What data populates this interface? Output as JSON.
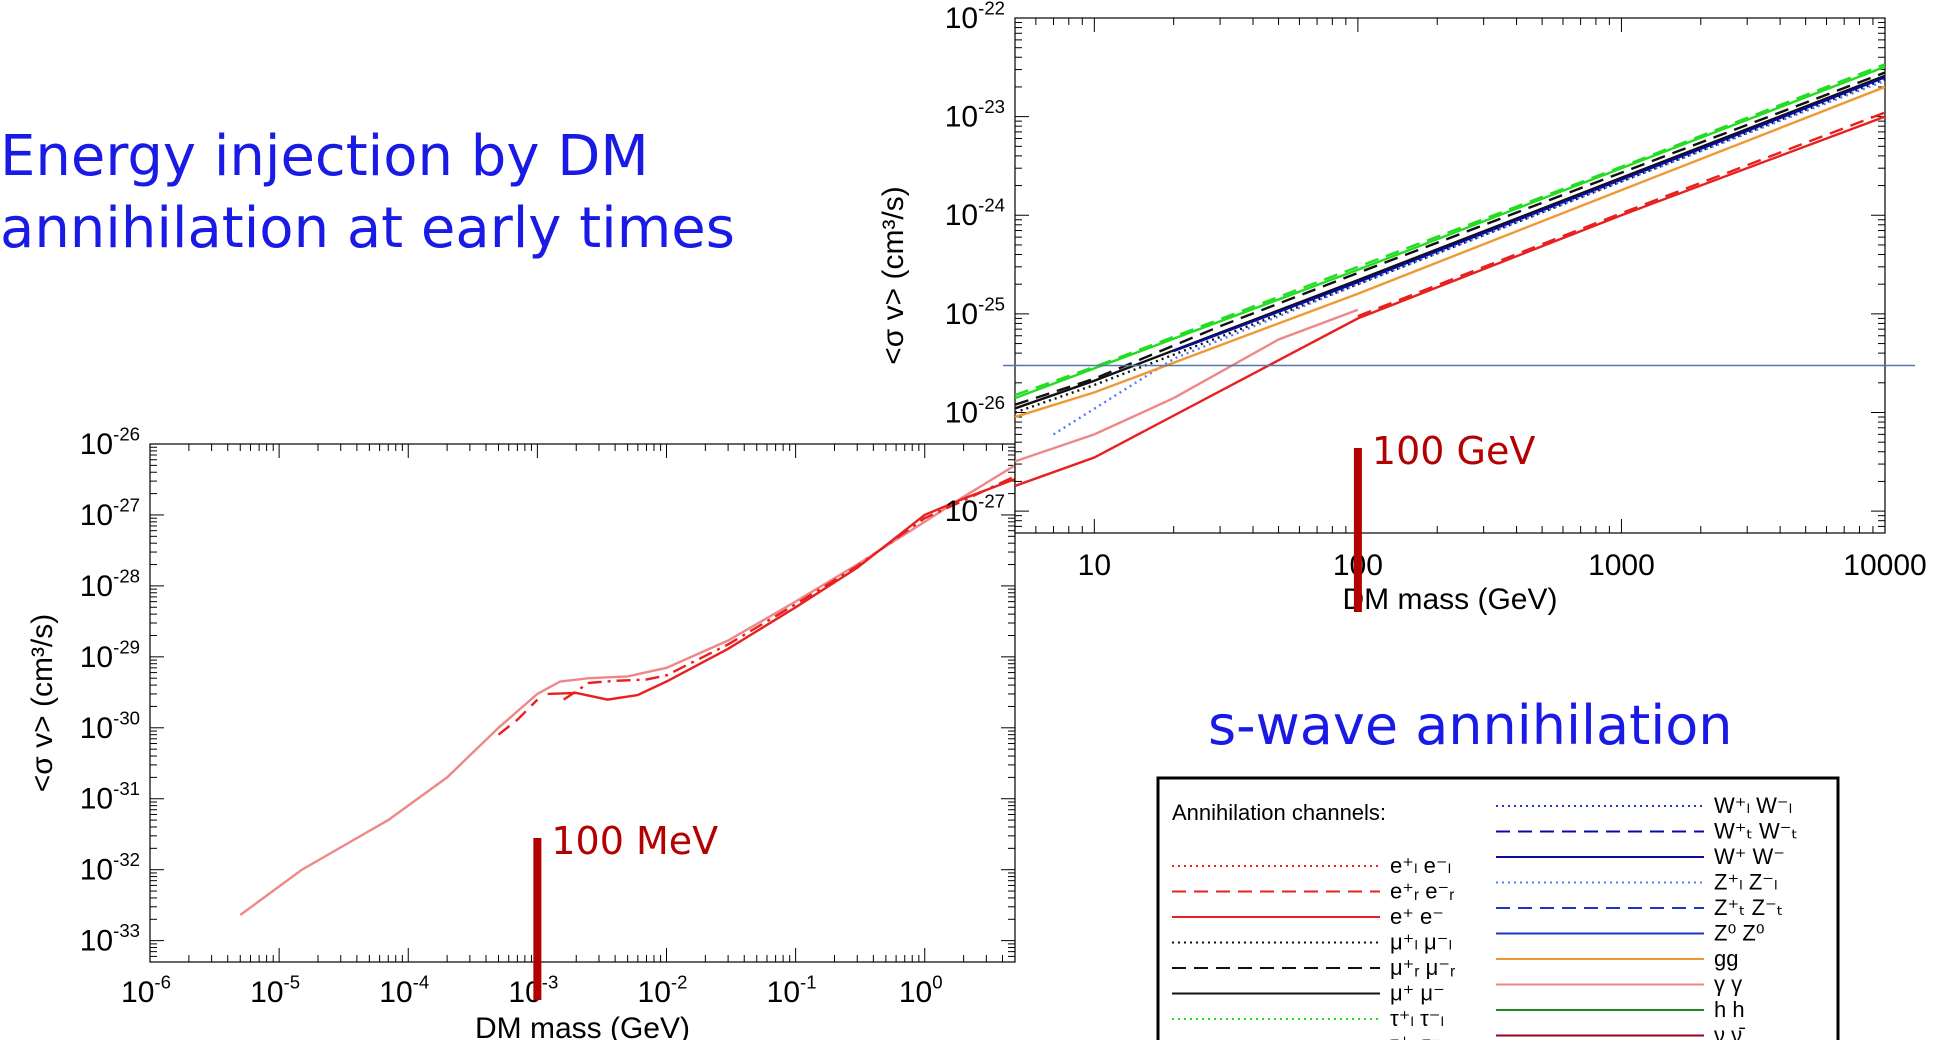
{
  "heading": {
    "line1": "Energy injection by DM",
    "line2": "annihilation at early times",
    "subtitle": "s-wave annihilation"
  },
  "chart_data": [
    {
      "type": "line",
      "id": "main-plot",
      "xlabel": "DM mass (GeV)",
      "ylabel": "<σ v> (cm³/s)",
      "xscale": "log",
      "yscale": "log",
      "xlim": [
        1e-06,
        5
      ],
      "ylim": [
        5e-34,
        1e-26
      ],
      "x_ticks": [
        "-6",
        "-5",
        "-4",
        "-3",
        "-2",
        "-1",
        "0"
      ],
      "y_ticks": [
        "-26",
        "-27",
        "-28",
        "-29",
        "-30",
        "-31",
        "-32",
        "-33"
      ],
      "series": [
        {
          "color": "#ee8888",
          "dash": "solid",
          "x": [
            5e-06,
            1.5e-05,
            7e-05,
            0.0002,
            0.0005,
            0.001,
            0.0015,
            0.0025,
            0.005,
            0.01,
            0.03,
            0.1,
            0.3,
            1,
            2,
            5
          ],
          "y": [
            2.3e-33,
            1e-32,
            5e-32,
            2e-31,
            1e-30,
            3e-30,
            4.5e-30,
            5e-30,
            5.3e-30,
            7e-30,
            1.7e-29,
            6e-29,
            2e-28,
            8e-28,
            1.8e-27,
            5e-27
          ]
        },
        {
          "color": "#e82020",
          "dash": "solid",
          "x": [
            0.0012,
            0.002,
            0.0035,
            0.006,
            0.01,
            0.03,
            0.1,
            0.3,
            1,
            2,
            5
          ],
          "y": [
            3e-30,
            3.1e-30,
            2.5e-30,
            2.9e-30,
            4.5e-30,
            1.3e-29,
            5e-29,
            1.8e-28,
            1e-27,
            1.7e-27,
            3.2e-27
          ]
        },
        {
          "color": "#e82020",
          "dash": "dashdot",
          "x": [
            0.0016,
            0.0025,
            0.004,
            0.007,
            0.01,
            0.03,
            0.1,
            0.3,
            1,
            2,
            5
          ],
          "y": [
            2.5e-30,
            4.3e-30,
            4.6e-30,
            4.8e-30,
            5.5e-30,
            1.5e-29,
            5.5e-29,
            1.9e-28,
            9e-28,
            1.6e-27,
            3.5e-27
          ]
        },
        {
          "color": "#e82020",
          "dash": "dashed",
          "x": [
            0.0005,
            0.0007,
            0.001
          ],
          "y": [
            8e-31,
            1.3e-30,
            2.5e-30
          ]
        }
      ],
      "annotation": {
        "label": "100 MeV",
        "x": 0.001
      }
    },
    {
      "type": "line",
      "id": "inset-plot",
      "xlabel": "DM mass (GeV)",
      "ylabel": "<σ v> (cm³/s)",
      "xscale": "log",
      "yscale": "log",
      "xlim": [
        5,
        10000
      ],
      "ylim": [
        6e-28,
        1e-22
      ],
      "x_ticks": [
        "10",
        "100",
        "1000",
        "10000"
      ],
      "y_ticks": [
        "-22",
        "-23",
        "-24",
        "-25",
        "-26",
        "-27"
      ],
      "reference_line": 3e-26,
      "series": [
        {
          "color": "#22dd22",
          "dash": "solid",
          "x": [
            5,
            10,
            100,
            1000,
            10000
          ],
          "y": [
            1.4e-26,
            2.8e-26,
            2.8e-25,
            3e-24,
            3.2e-23
          ]
        },
        {
          "color": "#22dd22",
          "dash": "dashed",
          "x": [
            5,
            10,
            100,
            1000,
            10000
          ],
          "y": [
            1.5e-26,
            2.9e-26,
            3e-25,
            3.1e-24,
            3.4e-23
          ]
        },
        {
          "color": "#111111",
          "dash": "dashed",
          "x": [
            5,
            10,
            30,
            100,
            1000,
            10000
          ],
          "y": [
            1.2e-26,
            2.2e-26,
            7.5e-26,
            2.6e-25,
            2.7e-24,
            2.8e-23
          ]
        },
        {
          "color": "#111111",
          "dash": "solid",
          "x": [
            5,
            10,
            100,
            1000,
            10000
          ],
          "y": [
            1.1e-26,
            2.1e-26,
            2.2e-25,
            2.4e-24,
            2.6e-23
          ]
        },
        {
          "color": "#111111",
          "dash": "dotted",
          "x": [
            5,
            10,
            100,
            1000,
            10000
          ],
          "y": [
            1e-26,
            1.9e-26,
            2e-25,
            2.2e-24,
            2.4e-23
          ]
        },
        {
          "color": "#0a0aa0",
          "dash": "solid",
          "x": [
            20,
            100,
            1000,
            10000
          ],
          "y": [
            4.2e-26,
            2.1e-25,
            2.3e-24,
            2.5e-23
          ]
        },
        {
          "color": "#5577ff",
          "dash": "dotted",
          "x": [
            7,
            20,
            100,
            1000,
            10000
          ],
          "y": [
            6e-27,
            3.5e-26,
            2e-25,
            2.2e-24,
            2.3e-23
          ]
        },
        {
          "color": "#ee9933",
          "dash": "solid",
          "x": [
            5,
            10,
            100,
            1000,
            10000
          ],
          "y": [
            9e-27,
            1.6e-26,
            1.6e-25,
            1.8e-24,
            2e-23
          ]
        },
        {
          "color": "#ee8888",
          "dash": "solid",
          "x": [
            5,
            10,
            20,
            50,
            100
          ],
          "y": [
            3.2e-27,
            6e-27,
            1.4e-26,
            5.5e-26,
            1.1e-25
          ]
        },
        {
          "color": "#e82020",
          "dash": "solid",
          "x": [
            5,
            10,
            100,
            1000,
            10000
          ],
          "y": [
            1.8e-27,
            3.5e-27,
            9e-26,
            1e-24,
            1e-23
          ]
        },
        {
          "color": "#e82020",
          "dash": "dashed",
          "x": [
            100,
            1000,
            10000
          ],
          "y": [
            9.5e-26,
            1.05e-24,
            1.1e-23
          ]
        }
      ],
      "annotation": {
        "label": "100 GeV",
        "x": 100
      }
    }
  ],
  "legend": {
    "header": "Annihilation channels:",
    "left": [
      {
        "color": "#e82020",
        "dash": "dotted",
        "label": "e⁺ₗ e⁻ₗ"
      },
      {
        "color": "#e82020",
        "dash": "dashed",
        "label": "e⁺ᵣ e⁻ᵣ"
      },
      {
        "color": "#e82020",
        "dash": "solid",
        "label": "e⁺ e⁻"
      },
      {
        "color": "#111111",
        "dash": "dotted",
        "label": "μ⁺ₗ μ⁻ₗ"
      },
      {
        "color": "#111111",
        "dash": "dashed",
        "label": "μ⁺ᵣ μ⁻ᵣ"
      },
      {
        "color": "#111111",
        "dash": "solid",
        "label": "μ⁺ μ⁻"
      },
      {
        "color": "#22dd22",
        "dash": "dotted",
        "label": "τ⁺ₗ τ⁻ₗ"
      },
      {
        "color": "#22dd22",
        "dash": "dashed",
        "label": "τ⁺ᵣ τ⁻ᵣ"
      }
    ],
    "right": [
      {
        "color": "#2233cc",
        "dash": "dotted",
        "label": "W⁺ₗ W⁻ₗ"
      },
      {
        "color": "#0a0aa0",
        "dash": "dashed",
        "label": "W⁺ₜ W⁻ₜ"
      },
      {
        "color": "#0a0aa0",
        "dash": "solid",
        "label": "W⁺ W⁻"
      },
      {
        "color": "#5577ff",
        "dash": "dotted",
        "label": "Z⁺ₗ Z⁻ₗ"
      },
      {
        "color": "#2233cc",
        "dash": "dashed",
        "label": "Z⁺ₜ Z⁻ₜ"
      },
      {
        "color": "#2233cc",
        "dash": "solid",
        "label": "Z⁰ Z⁰"
      },
      {
        "color": "#ee9933",
        "dash": "solid",
        "label": "gg"
      },
      {
        "color": "#ee8888",
        "dash": "solid",
        "label": "γ γ"
      },
      {
        "color": "#228822",
        "dash": "solid",
        "label": "h h"
      },
      {
        "color": "#990022",
        "dash": "solid",
        "label": "ν ν̄"
      }
    ]
  }
}
